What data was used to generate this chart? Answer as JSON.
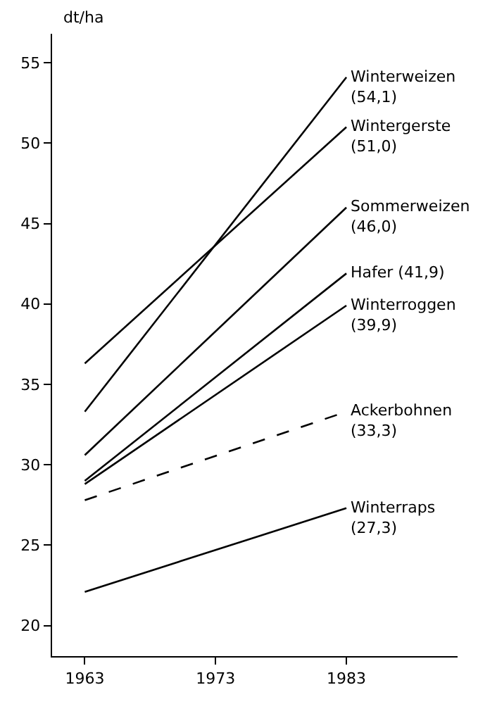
{
  "chart_data": {
    "type": "line",
    "ylabel": "dt/ha",
    "x": [
      1963,
      1983
    ],
    "xlim": [
      1960.5,
      1991.5
    ],
    "xticks": [
      1963,
      1973,
      1983
    ],
    "ylim": [
      18.1,
      56.8
    ],
    "yticks": [
      20,
      25,
      30,
      35,
      40,
      45,
      50,
      55
    ],
    "grid": false,
    "legend": false,
    "marker": "none",
    "line_style": "solid",
    "series": [
      {
        "name": "Winterweizen",
        "color": "#000000",
        "values": [
          33.3,
          54.1
        ],
        "value_labels": [
          null,
          "(54,1)"
        ]
      },
      {
        "name": "Wintergerste",
        "color": "#000000",
        "values": [
          36.3,
          51.0
        ],
        "value_labels": [
          null,
          "(51,0)"
        ]
      },
      {
        "name": "Sommerweizen",
        "color": "#000000",
        "values": [
          30.6,
          46.0
        ],
        "value_labels": [
          null,
          "(46,0)"
        ]
      },
      {
        "name": "Hafer",
        "color": "#000000",
        "values": [
          29.0,
          41.9
        ],
        "value_labels": [
          null,
          "(41,9)"
        ]
      },
      {
        "name": "Winterroggen",
        "color": "#000000",
        "values": [
          28.8,
          39.9
        ],
        "value_labels": [
          null,
          "(39,9)"
        ]
      },
      {
        "name": "Ackerbohnen",
        "color": "#000000",
        "values": [
          27.8,
          33.3
        ],
        "value_labels": [
          null,
          "(33,3)"
        ],
        "line_style": "dashed"
      },
      {
        "name": "Winterraps",
        "color": "#000000",
        "values": [
          22.1,
          27.3
        ],
        "value_labels": [
          null,
          "(27,3)"
        ]
      }
    ]
  }
}
